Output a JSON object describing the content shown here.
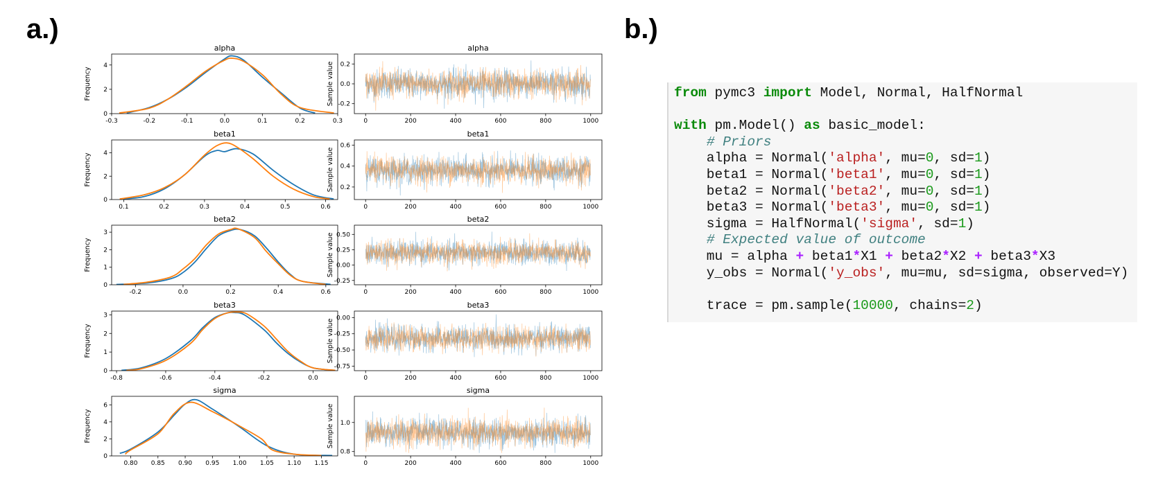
{
  "panels": {
    "a": "a.)",
    "b": "b.)"
  },
  "chart_data": [
    {
      "type": "line",
      "title": "alpha",
      "xlabel": "",
      "ylabel": "Frequency",
      "xlim": [
        -0.3,
        0.3
      ],
      "ylim": [
        0,
        4.9
      ],
      "xticks": [
        "-0.3",
        "-0.2",
        "-0.1",
        "0.0",
        "0.1",
        "0.2",
        "0.3"
      ],
      "xtick_vals": [
        -0.3,
        -0.2,
        -0.1,
        0.0,
        0.1,
        0.2,
        0.3
      ],
      "yticks": [
        "0",
        "2",
        "4"
      ],
      "ytick_vals": [
        0,
        2,
        4
      ],
      "series": [
        {
          "color": "#1f77b4",
          "x": [
            -0.26,
            -0.2,
            -0.15,
            -0.1,
            -0.05,
            0.0,
            0.02,
            0.05,
            0.1,
            0.15,
            0.2,
            0.24
          ],
          "y": [
            0.05,
            0.5,
            1.2,
            2.2,
            3.4,
            4.5,
            4.75,
            4.4,
            3.0,
            1.7,
            0.45,
            0.05
          ]
        },
        {
          "color": "#ff7f0e",
          "x": [
            -0.28,
            -0.2,
            -0.15,
            -0.1,
            -0.05,
            0.0,
            0.02,
            0.05,
            0.1,
            0.15,
            0.2,
            0.29
          ],
          "y": [
            0.05,
            0.45,
            1.2,
            2.3,
            3.5,
            4.4,
            4.55,
            4.3,
            3.2,
            1.6,
            0.5,
            0.05
          ]
        }
      ]
    },
    {
      "type": "line",
      "title": "alpha",
      "xlabel": "",
      "ylabel": "Sample value",
      "xlim": [
        -50,
        1050
      ],
      "ylim": [
        -0.3,
        0.3
      ],
      "xticks": [
        "0",
        "200",
        "400",
        "600",
        "800",
        "1000"
      ],
      "xtick_vals": [
        0,
        200,
        400,
        600,
        800,
        1000
      ],
      "yticks": [
        "-0.2",
        "0.0",
        "0.2"
      ],
      "ytick_vals": [
        -0.2,
        0.0,
        0.2
      ],
      "trace": {
        "center": 0.0,
        "spread": 0.09,
        "min": -0.27,
        "max": 0.28,
        "n": 1000
      }
    },
    {
      "type": "line",
      "title": "beta1",
      "xlabel": "",
      "ylabel": "Frequency",
      "xlim": [
        0.07,
        0.63
      ],
      "ylim": [
        0,
        5.1
      ],
      "xticks": [
        "0.1",
        "0.2",
        "0.3",
        "0.4",
        "0.5",
        "0.6"
      ],
      "xtick_vals": [
        0.1,
        0.2,
        0.3,
        0.4,
        0.5,
        0.6
      ],
      "yticks": [
        "0",
        "2",
        "4"
      ],
      "ytick_vals": [
        0,
        2,
        4
      ],
      "series": [
        {
          "color": "#1f77b4",
          "x": [
            0.1,
            0.15,
            0.2,
            0.25,
            0.3,
            0.33,
            0.35,
            0.38,
            0.42,
            0.47,
            0.52,
            0.57,
            0.62
          ],
          "y": [
            0.05,
            0.25,
            0.9,
            2.1,
            3.7,
            4.2,
            4.1,
            4.35,
            3.9,
            2.5,
            1.3,
            0.4,
            0.05
          ]
        },
        {
          "color": "#ff7f0e",
          "x": [
            0.09,
            0.15,
            0.2,
            0.25,
            0.3,
            0.33,
            0.355,
            0.38,
            0.42,
            0.47,
            0.52,
            0.57,
            0.61
          ],
          "y": [
            0.05,
            0.4,
            1.0,
            2.1,
            3.8,
            4.6,
            4.85,
            4.5,
            3.5,
            2.0,
            0.9,
            0.25,
            0.05
          ]
        }
      ]
    },
    {
      "type": "line",
      "title": "beta1",
      "xlabel": "",
      "ylabel": "Sample value",
      "xlim": [
        -50,
        1050
      ],
      "ylim": [
        0.08,
        0.65
      ],
      "xticks": [
        "0",
        "200",
        "400",
        "600",
        "800",
        "1000"
      ],
      "xtick_vals": [
        0,
        200,
        400,
        600,
        800,
        1000
      ],
      "yticks": [
        "0.2",
        "0.4",
        "0.6"
      ],
      "ytick_vals": [
        0.2,
        0.4,
        0.6
      ],
      "trace": {
        "center": 0.36,
        "spread": 0.08,
        "min": 0.1,
        "max": 0.62,
        "n": 1000
      }
    },
    {
      "type": "line",
      "title": "beta2",
      "xlabel": "",
      "ylabel": "Frequency",
      "xlim": [
        -0.3,
        0.65
      ],
      "ylim": [
        0,
        3.4
      ],
      "xticks": [
        "-0.2",
        "0.0",
        "0.2",
        "0.4",
        "0.6"
      ],
      "xtick_vals": [
        -0.2,
        0.0,
        0.2,
        0.4,
        0.6
      ],
      "yticks": [
        "0",
        "1",
        "2",
        "3"
      ],
      "ytick_vals": [
        0,
        1,
        2,
        3
      ],
      "series": [
        {
          "color": "#1f77b4",
          "x": [
            -0.28,
            -0.15,
            -0.05,
            0.0,
            0.05,
            0.1,
            0.15,
            0.2,
            0.24,
            0.3,
            0.35,
            0.4,
            0.45,
            0.5,
            0.62
          ],
          "y": [
            0.02,
            0.1,
            0.35,
            0.7,
            1.3,
            2.1,
            2.8,
            3.1,
            3.15,
            2.8,
            2.1,
            1.3,
            0.6,
            0.2,
            0.02
          ]
        },
        {
          "color": "#ff7f0e",
          "x": [
            -0.25,
            -0.15,
            -0.05,
            0.0,
            0.05,
            0.1,
            0.15,
            0.2,
            0.23,
            0.3,
            0.35,
            0.4,
            0.45,
            0.5,
            0.6
          ],
          "y": [
            0.02,
            0.15,
            0.45,
            0.9,
            1.5,
            2.3,
            2.9,
            3.15,
            3.2,
            2.7,
            1.9,
            1.2,
            0.55,
            0.2,
            0.02
          ]
        }
      ]
    },
    {
      "type": "line",
      "title": "beta2",
      "xlabel": "",
      "ylabel": "Sample value",
      "xlim": [
        -50,
        1050
      ],
      "ylim": [
        -0.32,
        0.65
      ],
      "xticks": [
        "0",
        "200",
        "400",
        "600",
        "800",
        "1000"
      ],
      "xtick_vals": [
        0,
        200,
        400,
        600,
        800,
        1000
      ],
      "yticks": [
        "-0.25",
        "0.00",
        "0.25",
        "0.50"
      ],
      "ytick_vals": [
        -0.25,
        0.0,
        0.25,
        0.5
      ],
      "trace": {
        "center": 0.2,
        "spread": 0.12,
        "min": -0.28,
        "max": 0.6,
        "n": 1000
      }
    },
    {
      "type": "line",
      "title": "beta3",
      "xlabel": "",
      "ylabel": "Frequency",
      "xlim": [
        -0.82,
        0.1
      ],
      "ylim": [
        0,
        3.2
      ],
      "xticks": [
        "-0.8",
        "-0.6",
        "-0.4",
        "-0.2",
        "0.0"
      ],
      "xtick_vals": [
        -0.8,
        -0.6,
        -0.4,
        -0.2,
        0.0
      ],
      "yticks": [
        "0",
        "1",
        "2",
        "3"
      ],
      "ytick_vals": [
        0,
        1,
        2,
        3
      ],
      "series": [
        {
          "color": "#1f77b4",
          "x": [
            -0.78,
            -0.7,
            -0.6,
            -0.5,
            -0.45,
            -0.4,
            -0.35,
            -0.32,
            -0.28,
            -0.2,
            -0.15,
            -0.1,
            -0.05,
            0.0,
            0.08
          ],
          "y": [
            0.02,
            0.15,
            0.65,
            1.6,
            2.3,
            2.85,
            3.1,
            3.12,
            3.0,
            2.2,
            1.5,
            0.9,
            0.45,
            0.15,
            0.02
          ]
        },
        {
          "color": "#ff7f0e",
          "x": [
            -0.76,
            -0.7,
            -0.6,
            -0.5,
            -0.45,
            -0.4,
            -0.35,
            -0.31,
            -0.27,
            -0.2,
            -0.15,
            -0.1,
            -0.05,
            0.0,
            0.09
          ],
          "y": [
            0.02,
            0.1,
            0.55,
            1.45,
            2.2,
            2.8,
            3.1,
            3.15,
            3.05,
            2.4,
            1.7,
            1.0,
            0.5,
            0.15,
            0.02
          ]
        }
      ]
    },
    {
      "type": "line",
      "title": "beta3",
      "xlabel": "",
      "ylabel": "Sample value",
      "xlim": [
        -50,
        1050
      ],
      "ylim": [
        -0.82,
        0.1
      ],
      "xticks": [
        "0",
        "200",
        "400",
        "600",
        "800",
        "1000"
      ],
      "xtick_vals": [
        0,
        200,
        400,
        600,
        800,
        1000
      ],
      "yticks": [
        "-0.75",
        "-0.50",
        "-0.25",
        "0.00"
      ],
      "ytick_vals": [
        -0.75,
        -0.5,
        -0.25,
        0.0
      ],
      "trace": {
        "center": -0.32,
        "spread": 0.12,
        "min": -0.78,
        "max": 0.05,
        "n": 1000
      }
    },
    {
      "type": "line",
      "title": "sigma",
      "xlabel": "",
      "ylabel": "Frequency",
      "xlim": [
        0.765,
        1.18
      ],
      "ylim": [
        0,
        7.0
      ],
      "xticks": [
        "0.80",
        "0.85",
        "0.90",
        "0.95",
        "1.00",
        "1.05",
        "1.10",
        "1.15"
      ],
      "xtick_vals": [
        0.8,
        0.85,
        0.9,
        0.95,
        1.0,
        1.05,
        1.1,
        1.15
      ],
      "yticks": [
        "0",
        "2",
        "4",
        "6"
      ],
      "ytick_vals": [
        0,
        2,
        4,
        6
      ],
      "series": [
        {
          "color": "#1f77b4",
          "x": [
            0.78,
            0.8,
            0.85,
            0.88,
            0.9,
            0.92,
            0.95,
            1.0,
            1.05,
            1.1,
            1.17
          ],
          "y": [
            0.3,
            0.8,
            2.8,
            4.8,
            6.1,
            6.6,
            5.5,
            3.4,
            1.2,
            0.2,
            0.05
          ]
        },
        {
          "color": "#ff7f0e",
          "x": [
            0.79,
            0.8,
            0.85,
            0.88,
            0.91,
            0.95,
            1.0,
            1.04,
            1.06,
            1.1,
            1.15
          ],
          "y": [
            0.2,
            0.7,
            2.6,
            5.0,
            6.3,
            5.2,
            3.5,
            2.0,
            0.7,
            0.2,
            0.05
          ]
        }
      ]
    },
    {
      "type": "line",
      "title": "sigma",
      "xlabel": "",
      "ylabel": "Sample value",
      "xlim": [
        -50,
        1050
      ],
      "ylim": [
        0.77,
        1.18
      ],
      "xticks": [
        "0",
        "200",
        "400",
        "600",
        "800",
        "1000"
      ],
      "xtick_vals": [
        0,
        200,
        400,
        600,
        800,
        1000
      ],
      "yticks": [
        "0.8",
        "1.0"
      ],
      "ytick_vals": [
        0.8,
        1.0
      ],
      "trace": {
        "center": 0.93,
        "spread": 0.06,
        "min": 0.79,
        "max": 1.15,
        "n": 1000
      }
    }
  ],
  "code": {
    "lines": [
      [
        [
          "kw",
          "from"
        ],
        [
          "t",
          " pymc3 "
        ],
        [
          "kw",
          "import"
        ],
        [
          "t",
          " Model, Normal, HalfNormal"
        ]
      ],
      [],
      [
        [
          "kw",
          "with"
        ],
        [
          "t",
          " pm.Model() "
        ],
        [
          "kw",
          "as"
        ],
        [
          "t",
          " basic_model:"
        ]
      ],
      [
        [
          "t",
          "    "
        ],
        [
          "com",
          "# Priors"
        ]
      ],
      [
        [
          "t",
          "    alpha = Normal("
        ],
        [
          "str",
          "'alpha'"
        ],
        [
          "t",
          ", mu="
        ],
        [
          "num",
          "0"
        ],
        [
          "t",
          ", sd="
        ],
        [
          "num",
          "1"
        ],
        [
          "t",
          ")"
        ]
      ],
      [
        [
          "t",
          "    beta1 = Normal("
        ],
        [
          "str",
          "'beta1'"
        ],
        [
          "t",
          ", mu="
        ],
        [
          "num",
          "0"
        ],
        [
          "t",
          ", sd="
        ],
        [
          "num",
          "1"
        ],
        [
          "t",
          ")"
        ]
      ],
      [
        [
          "t",
          "    beta2 = Normal("
        ],
        [
          "str",
          "'beta2'"
        ],
        [
          "t",
          ", mu="
        ],
        [
          "num",
          "0"
        ],
        [
          "t",
          ", sd="
        ],
        [
          "num",
          "1"
        ],
        [
          "t",
          ")"
        ]
      ],
      [
        [
          "t",
          "    beta3 = Normal("
        ],
        [
          "str",
          "'beta3'"
        ],
        [
          "t",
          ", mu="
        ],
        [
          "num",
          "0"
        ],
        [
          "t",
          ", sd="
        ],
        [
          "num",
          "1"
        ],
        [
          "t",
          ")"
        ]
      ],
      [
        [
          "t",
          "    sigma = HalfNormal("
        ],
        [
          "str",
          "'sigma'"
        ],
        [
          "t",
          ", sd="
        ],
        [
          "num",
          "1"
        ],
        [
          "t",
          ")"
        ]
      ],
      [
        [
          "t",
          "    "
        ],
        [
          "com",
          "# Expected value of outcome"
        ]
      ],
      [
        [
          "t",
          "    mu = alpha "
        ],
        [
          "op",
          "+"
        ],
        [
          "t",
          " beta1"
        ],
        [
          "op",
          "*"
        ],
        [
          "t",
          "X1 "
        ],
        [
          "op",
          "+"
        ],
        [
          "t",
          " beta2"
        ],
        [
          "op",
          "*"
        ],
        [
          "t",
          "X2 "
        ],
        [
          "op",
          "+"
        ],
        [
          "t",
          " beta3"
        ],
        [
          "op",
          "*"
        ],
        [
          "t",
          "X3"
        ]
      ],
      [
        [
          "t",
          "    y_obs = Normal("
        ],
        [
          "str",
          "'y_obs'"
        ],
        [
          "t",
          ", mu=mu, sd=sigma, observed=Y)"
        ]
      ],
      [],
      [
        [
          "t",
          "    trace = pm.sample("
        ],
        [
          "num",
          "10000"
        ],
        [
          "t",
          ", chains="
        ],
        [
          "num",
          "2"
        ],
        [
          "t",
          ")"
        ]
      ]
    ]
  }
}
